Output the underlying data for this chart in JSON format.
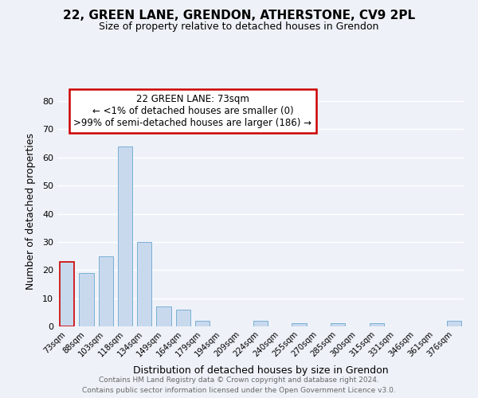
{
  "title": "22, GREEN LANE, GRENDON, ATHERSTONE, CV9 2PL",
  "subtitle": "Size of property relative to detached houses in Grendon",
  "xlabel": "Distribution of detached houses by size in Grendon",
  "ylabel": "Number of detached properties",
  "categories": [
    "73sqm",
    "88sqm",
    "103sqm",
    "118sqm",
    "134sqm",
    "149sqm",
    "164sqm",
    "179sqm",
    "194sqm",
    "209sqm",
    "224sqm",
    "240sqm",
    "255sqm",
    "270sqm",
    "285sqm",
    "300sqm",
    "315sqm",
    "331sqm",
    "346sqm",
    "361sqm",
    "376sqm"
  ],
  "values": [
    23,
    19,
    25,
    64,
    30,
    7,
    6,
    2,
    0,
    0,
    2,
    0,
    1,
    0,
    1,
    0,
    1,
    0,
    0,
    0,
    2
  ],
  "bar_color": "#c8d9ee",
  "bar_edge_color": "#7aafd4",
  "highlight_bar_index": 0,
  "highlight_bar_edge_color": "#cc0000",
  "annotation_line1": "22 GREEN LANE: 73sqm",
  "annotation_line2": "← <1% of detached houses are smaller (0)",
  "annotation_line3": ">99% of semi-detached houses are larger (186) →",
  "ylim": [
    0,
    82
  ],
  "yticks": [
    0,
    10,
    20,
    30,
    40,
    50,
    60,
    70,
    80
  ],
  "bg_color": "#eef2f8",
  "grid_color": "#ffffff",
  "footer_line1": "Contains HM Land Registry data © Crown copyright and database right 2024.",
  "footer_line2": "Contains public sector information licensed under the Open Government Licence v3.0."
}
